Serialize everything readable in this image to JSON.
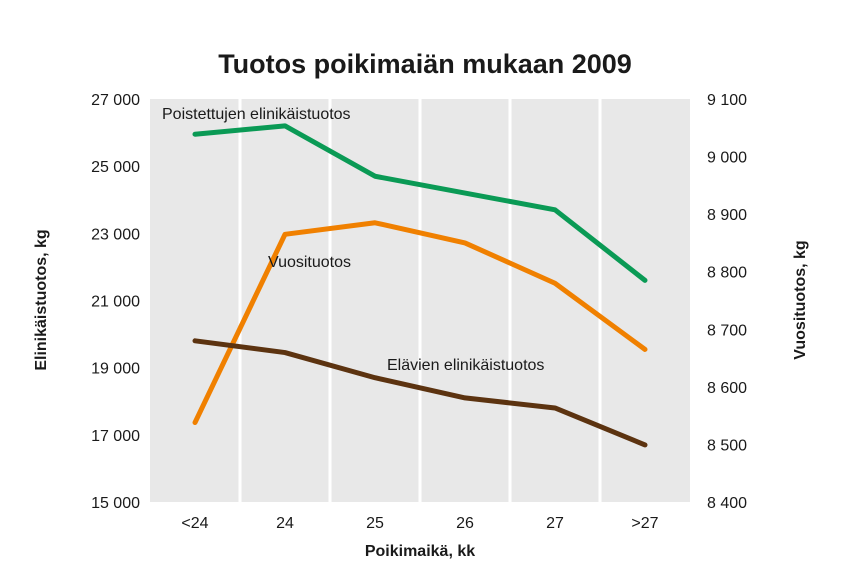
{
  "chart_data": {
    "type": "line",
    "title": "Tuotos poikimaiän mukaan 2009",
    "xlabel": "Poikimaikä, kk",
    "ylabel_left": "Elinikäistuotos, kg",
    "ylabel_right": "Vuosituotos, kg",
    "categories": [
      "<24",
      "24",
      "25",
      "26",
      "27",
      ">27"
    ],
    "y_left": {
      "lim": [
        15000,
        27000
      ],
      "ticks": [
        15000,
        17000,
        19000,
        21000,
        23000,
        25000,
        27000
      ],
      "tick_labels": [
        "15 000",
        "17 000",
        "19 000",
        "21 000",
        "23 000",
        "25 000",
        "27 000"
      ]
    },
    "y_right": {
      "lim": [
        8400,
        9100
      ],
      "ticks": [
        8400,
        8500,
        8600,
        8700,
        8800,
        8900,
        9000,
        9100
      ],
      "tick_labels": [
        "8 400",
        "8 500",
        "8 600",
        "8 700",
        "8 800",
        "8 900",
        "9 000",
        "9 100"
      ]
    },
    "grid": "vertical white separators between categories",
    "background_color": "#e8e8e8",
    "series": [
      {
        "name": "Poistettujen elinikäistuotos",
        "axis": "left",
        "color": "#0a9a55",
        "values": [
          25950,
          26200,
          24700,
          24200,
          23700,
          21600
        ]
      },
      {
        "name": "Vuosituotos",
        "axis": "right",
        "color": "#f08000",
        "values": [
          8538,
          8865,
          8885,
          8850,
          8780,
          8665
        ]
      },
      {
        "name": "Elävien elinikäistuotos",
        "axis": "left",
        "color": "#5c3310",
        "values": [
          19800,
          19450,
          18700,
          18100,
          17800,
          16700
        ]
      }
    ]
  }
}
